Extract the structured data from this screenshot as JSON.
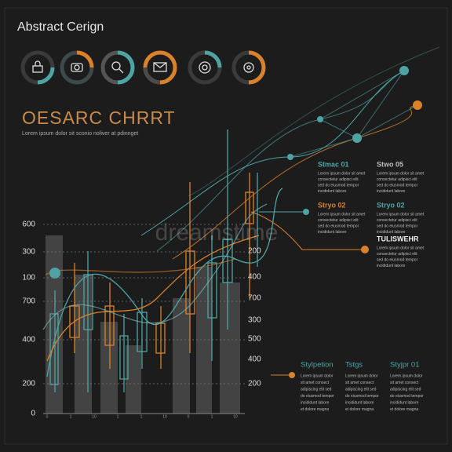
{
  "header": {
    "title": "Abstract Cerign"
  },
  "chart_block": {
    "title": "OESARC CHRRT",
    "subtitle": "Lorem ipsum dolor sit sconio noliver at pdinnget",
    "watermark": "dreamstime",
    "left_axis": [
      "600",
      "300",
      "100",
      "700",
      "400",
      "200",
      "0"
    ],
    "right_axis": [
      "200",
      "400",
      "700",
      "300",
      "500",
      "400",
      "200"
    ],
    "x_labels": [
      "0",
      "1",
      "10",
      "1",
      "1",
      "10",
      "0",
      "1",
      "10"
    ]
  },
  "callouts": [
    {
      "title": "Stmac 01",
      "lines": [
        "Lorem ipsum dolor sit amet",
        "consectetur adipisci elit",
        "sed do eiusmod tempor",
        "incididunt labore"
      ]
    },
    {
      "title": "Stwo 05",
      "lines": [
        "Lorem ipsum dolor sit amet",
        "consectetur adipisci elit",
        "sed do eiusmod tempor",
        "incididunt labore"
      ]
    },
    {
      "title": "Stryo 02",
      "lines": [
        "Lorem ipsum dolor sit amet",
        "consectetur adipisci elit",
        "sed do eiusmod tempor",
        "incididunt labore"
      ]
    },
    {
      "title": "Stryo 02",
      "lines": [
        "Lorem ipsum dolor sit amet",
        "consectetur adipisci elit",
        "sed do eiusmod tempor",
        "incididunt labore"
      ]
    },
    {
      "title": "TULISWEHR",
      "lines": [
        "Lorem ipsum dolor sit amet",
        "consectetur adipisci elit",
        "sed do eiusmod tempor",
        "incididunt labore"
      ]
    }
  ],
  "notes": [
    {
      "title": "Stylpetion",
      "lines": [
        "Lorem ipsum dolor",
        "sit amet consect",
        "adipiscing elit sed",
        "do eiusmod tempor",
        "incididunt labore",
        "et dolore magna"
      ]
    },
    {
      "title": "Tstgs",
      "lines": [
        "Lorem ipsum dolor",
        "sit amet consect",
        "adipiscing elit sed",
        "do eiusmod tempor",
        "incididunt labore",
        "et dolore magna"
      ]
    },
    {
      "title": "Styjpr 01",
      "lines": [
        "Lorem ipsum dolor",
        "sit amet consect",
        "adipiscing elit sed",
        "do eiusmod tempor",
        "incididunt labore",
        "et dolore magna"
      ]
    }
  ]
}
